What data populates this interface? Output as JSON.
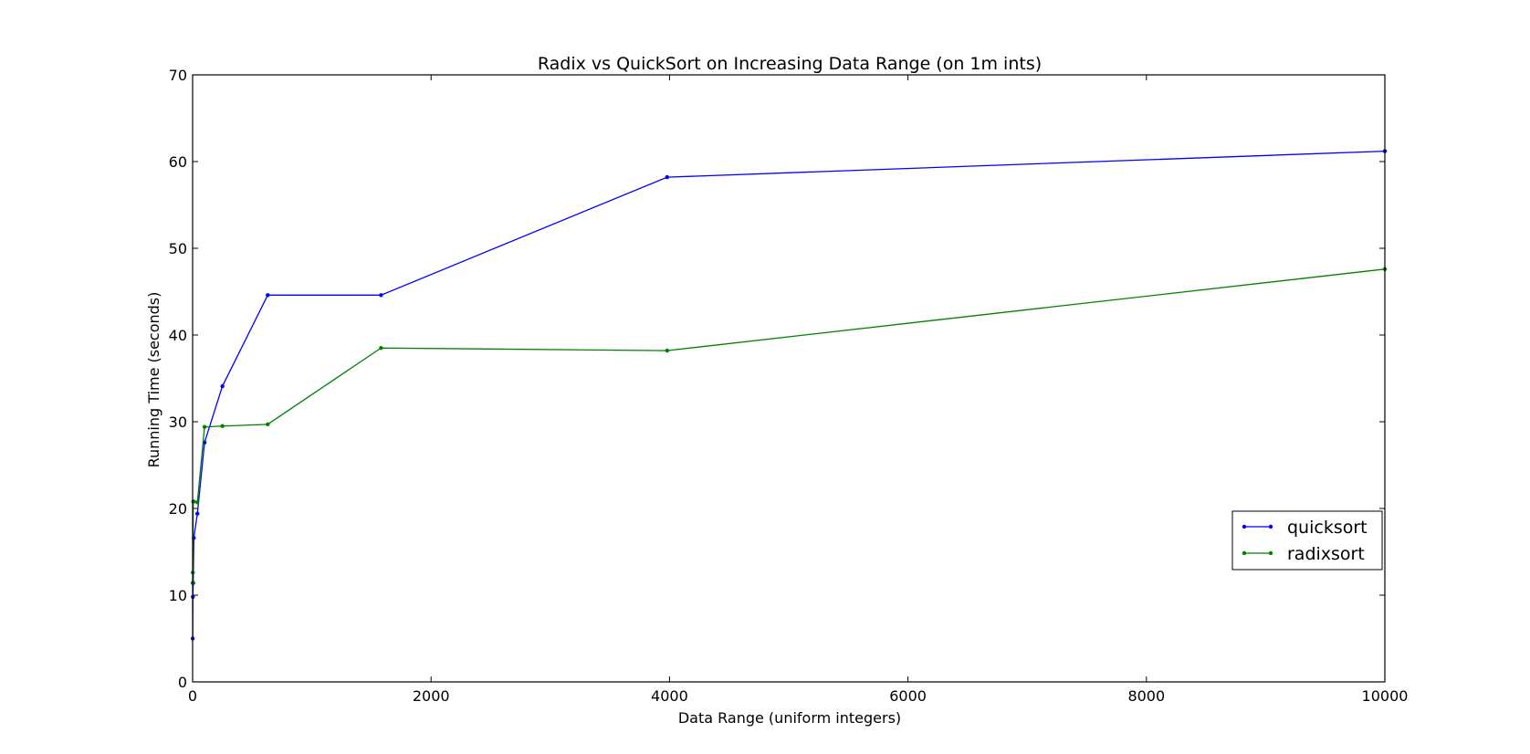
{
  "chart_data": {
    "type": "line",
    "title": "Radix vs QuickSort on Increasing Data Range (on 1m ints)",
    "xlabel": "Data Range (uniform integers)",
    "ylabel": "Running Time (seconds)",
    "xlim": [
      0,
      10000
    ],
    "ylim": [
      0,
      70
    ],
    "xticks": [
      0,
      2000,
      4000,
      6000,
      8000,
      10000
    ],
    "xtick_labels": [
      "0",
      "2000",
      "4000",
      "6000",
      "8000",
      "10000"
    ],
    "yticks": [
      0,
      10,
      20,
      30,
      40,
      50,
      60,
      70
    ],
    "ytick_labels": [
      "0",
      "10",
      "20",
      "30",
      "40",
      "50",
      "60",
      "70"
    ],
    "grid": false,
    "legend": "center-right",
    "series": [
      {
        "name": "quicksort",
        "color": "#0000ff",
        "x": [
          1,
          2,
          5,
          10,
          40,
          100,
          250,
          630,
          1580,
          3980,
          10000
        ],
        "y": [
          5.0,
          9.8,
          11.4,
          16.6,
          19.4,
          27.6,
          34.1,
          44.6,
          44.6,
          58.2,
          61.2
        ]
      },
      {
        "name": "radixsort",
        "color": "#008000",
        "x": [
          1,
          2,
          5,
          10,
          40,
          100,
          250,
          630,
          1580,
          3980,
          10000
        ],
        "y": [
          11.4,
          12.6,
          20.8,
          20.8,
          20.7,
          29.4,
          29.5,
          29.7,
          38.5,
          38.2,
          47.6
        ]
      }
    ]
  }
}
